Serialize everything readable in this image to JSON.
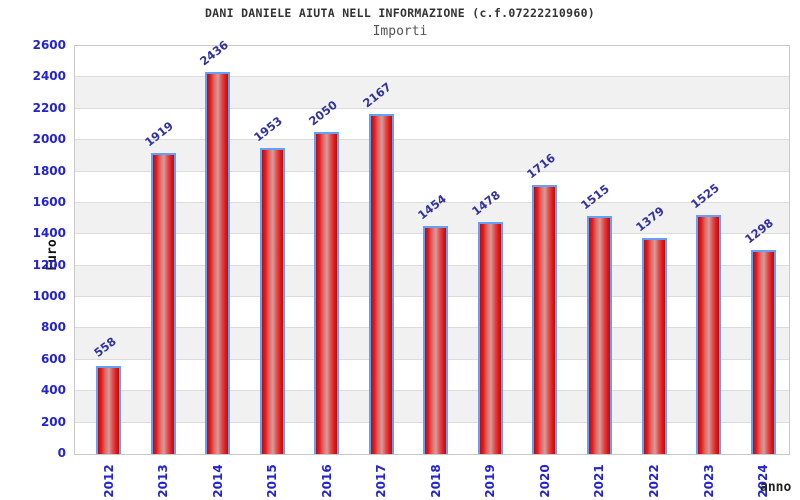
{
  "chart_data": {
    "type": "bar",
    "title": "DANI DANIELE AIUTA NELL INFORMAZIONE (c.f.07222210960)",
    "subtitle": "Importi",
    "ylabel": "Euro",
    "xlabel": "anno",
    "categories": [
      "2012",
      "2013",
      "2014",
      "2015",
      "2016",
      "2017",
      "2018",
      "2019",
      "2020",
      "2021",
      "2022",
      "2023",
      "2024"
    ],
    "values": [
      558,
      1919,
      2436,
      1953,
      2050,
      2167,
      1454,
      1478,
      1716,
      1515,
      1379,
      1525,
      1298
    ],
    "ylim": [
      0,
      2600
    ],
    "ytick_step": 200,
    "grid": "horizontal-bands",
    "legend": "none",
    "colors": {
      "bar_red": "#e31b1b",
      "bar_dark_edge": "#b01010",
      "bar_highlight": "#d49c9c",
      "bar_border": "#64a0f8",
      "axis_tick_label": "#2323cf",
      "value_label": "#32329e",
      "title": "#333333",
      "subtitle": "#555555",
      "band": "#f1f1f2",
      "gridline": "#dcdcdc",
      "plot_border": "#c9c9c9"
    }
  }
}
